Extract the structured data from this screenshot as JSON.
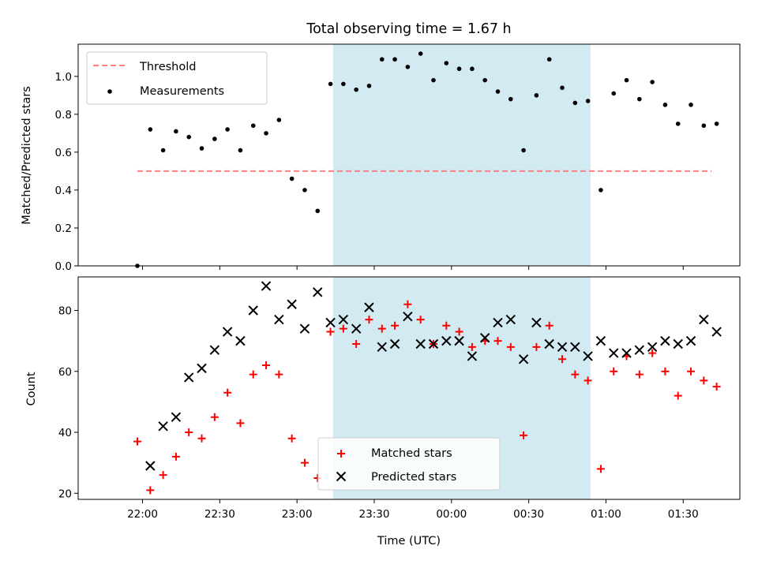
{
  "chart_data": [
    {
      "type": "scatter",
      "title": "Total observing time = 1.67 h",
      "ylabel": "Matched/Predicted stars",
      "xlabel": "",
      "ylim": [
        0,
        1.17
      ],
      "xlim_minutes": [
        -25,
        232
      ],
      "yticks": [
        0.0,
        0.2,
        0.4,
        0.6,
        0.8,
        1.0
      ],
      "y_tick_labels": [
        "0.0",
        "0.2",
        "0.4",
        "0.6",
        "0.8",
        "1.0"
      ],
      "shaded_span_minutes": [
        74,
        174
      ],
      "shade_color": "#add8e6",
      "threshold": {
        "name": "Threshold",
        "value": 0.5,
        "x_range_minutes": [
          -2,
          221
        ],
        "color": "#ff7f7f"
      },
      "series": [
        {
          "name": "Measurements",
          "marker": "dot",
          "color": "#000000",
          "x": [
            -2,
            3,
            8,
            13,
            18,
            23,
            28,
            33,
            38,
            43,
            48,
            53,
            58,
            63,
            68,
            73,
            78,
            83,
            88,
            93,
            98,
            103,
            108,
            113,
            118,
            123,
            128,
            133,
            138,
            143,
            148,
            153,
            158,
            163,
            168,
            173,
            178,
            183,
            188,
            193,
            198,
            203,
            208,
            213,
            218,
            223
          ],
          "values": [
            0.0,
            0.72,
            0.61,
            0.71,
            0.68,
            0.62,
            0.67,
            0.72,
            0.61,
            0.74,
            0.7,
            0.77,
            0.46,
            0.4,
            0.29,
            0.96,
            0.96,
            0.93,
            0.95,
            1.09,
            1.09,
            1.05,
            1.12,
            0.98,
            1.07,
            1.04,
            1.04,
            0.98,
            0.92,
            0.88,
            0.61,
            0.9,
            1.09,
            0.94,
            0.86,
            0.87,
            0.4,
            0.91,
            0.98,
            0.88,
            0.97,
            0.85,
            0.75,
            0.85,
            0.74,
            0.75
          ]
        }
      ],
      "legend_placement": "top-left"
    },
    {
      "type": "scatter",
      "title": "",
      "xlabel": "Time (UTC)",
      "ylabel": "Count",
      "ylim": [
        18,
        91
      ],
      "xlim_minutes": [
        -25,
        232
      ],
      "yticks": [
        20,
        40,
        60,
        80
      ],
      "y_tick_labels": [
        "20",
        "40",
        "60",
        "80"
      ],
      "x_ticks_minutes": [
        0,
        30,
        60,
        90,
        120,
        150,
        180,
        210
      ],
      "x_tick_labels": [
        "22:00",
        "22:30",
        "23:00",
        "23:30",
        "00:00",
        "00:30",
        "01:00",
        "01:30"
      ],
      "shaded_span_minutes": [
        74,
        174
      ],
      "shade_color": "#add8e6",
      "series": [
        {
          "name": "Matched stars",
          "marker": "plus",
          "color": "#ff0000",
          "x": [
            -2,
            3,
            8,
            13,
            18,
            23,
            28,
            33,
            38,
            43,
            48,
            53,
            58,
            63,
            68,
            73,
            78,
            83,
            88,
            93,
            98,
            103,
            108,
            113,
            118,
            123,
            128,
            133,
            138,
            143,
            148,
            153,
            158,
            163,
            168,
            173,
            178,
            183,
            188,
            193,
            198,
            203,
            208,
            213,
            218,
            223
          ],
          "values": [
            37,
            21,
            26,
            32,
            40,
            38,
            45,
            53,
            43,
            59,
            62,
            59,
            38,
            30,
            25,
            73,
            74,
            69,
            77,
            74,
            75,
            82,
            77,
            69,
            75,
            73,
            68,
            70,
            70,
            68,
            39,
            68,
            75,
            64,
            59,
            57,
            28,
            60,
            65,
            59,
            66,
            60,
            52,
            60,
            57,
            55
          ]
        },
        {
          "name": "Predicted stars",
          "marker": "x",
          "color": "#000000",
          "x": [
            3,
            8,
            13,
            18,
            23,
            28,
            33,
            38,
            43,
            48,
            53,
            58,
            63,
            68,
            73,
            78,
            83,
            88,
            93,
            98,
            103,
            108,
            113,
            118,
            123,
            128,
            133,
            138,
            143,
            148,
            153,
            158,
            163,
            168,
            173,
            178,
            183,
            188,
            193,
            198,
            203,
            208,
            213,
            218,
            223
          ],
          "values": [
            29,
            42,
            45,
            58,
            61,
            67,
            73,
            70,
            80,
            88,
            77,
            82,
            74,
            86,
            76,
            77,
            74,
            81,
            68,
            69,
            78,
            69,
            69,
            70,
            70,
            65,
            71,
            76,
            77,
            64,
            76,
            69,
            68,
            68,
            65,
            70,
            66,
            66,
            67,
            68,
            70,
            69,
            70,
            77,
            73
          ]
        }
      ],
      "legend_placement": "bottom-center"
    }
  ]
}
